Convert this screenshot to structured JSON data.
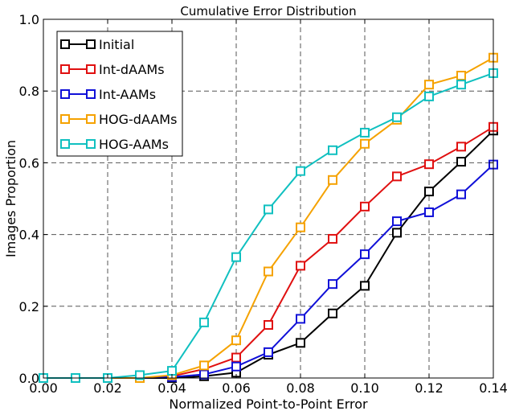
{
  "chart_data": {
    "type": "line",
    "title": "Cumulative Error Distribution",
    "xlabel": "Normalized Point-to-Point Error",
    "ylabel": "Images Proportion",
    "xlim": [
      0,
      0.14
    ],
    "ylim": [
      0,
      1.0
    ],
    "grid": true,
    "legend_position": "top-left",
    "x_ticks": [
      "0.00",
      "0.02",
      "0.04",
      "0.06",
      "0.08",
      "0.10",
      "0.12",
      "0.14"
    ],
    "y_ticks": [
      "0.0",
      "0.2",
      "0.4",
      "0.6",
      "0.8",
      "1.0"
    ],
    "x": [
      0.0,
      0.01,
      0.02,
      0.03,
      0.04,
      0.05,
      0.06,
      0.07,
      0.08,
      0.09,
      0.1,
      0.11,
      0.12,
      0.13,
      0.14
    ],
    "series": [
      {
        "name": "Initial",
        "color": "#000000",
        "values": [
          0.0,
          0.0,
          0.0,
          0.0,
          0.0,
          0.005,
          0.015,
          0.065,
          0.098,
          0.18,
          0.257,
          0.405,
          0.52,
          0.603,
          0.69
        ]
      },
      {
        "name": "Int-dAAMs",
        "color": "#e01010",
        "values": [
          0.0,
          0.0,
          0.0,
          0.0,
          0.005,
          0.025,
          0.057,
          0.148,
          0.313,
          0.388,
          0.478,
          0.562,
          0.596,
          0.645,
          0.7
        ]
      },
      {
        "name": "Int-AAMs",
        "color": "#1010d8",
        "values": [
          0.0,
          0.0,
          0.0,
          0.0,
          0.003,
          0.01,
          0.032,
          0.072,
          0.165,
          0.262,
          0.345,
          0.437,
          0.462,
          0.512,
          0.595
        ]
      },
      {
        "name": "HOG-dAAMs",
        "color": "#f5a200",
        "values": [
          0.0,
          0.0,
          0.0,
          0.0,
          0.008,
          0.035,
          0.105,
          0.297,
          0.42,
          0.552,
          0.653,
          0.72,
          0.818,
          0.843,
          0.893
        ]
      },
      {
        "name": "HOG-AAMs",
        "color": "#10c0c0",
        "values": [
          0.0,
          0.0,
          0.0,
          0.008,
          0.02,
          0.155,
          0.337,
          0.47,
          0.577,
          0.635,
          0.684,
          0.727,
          0.785,
          0.818,
          0.85
        ]
      }
    ]
  }
}
